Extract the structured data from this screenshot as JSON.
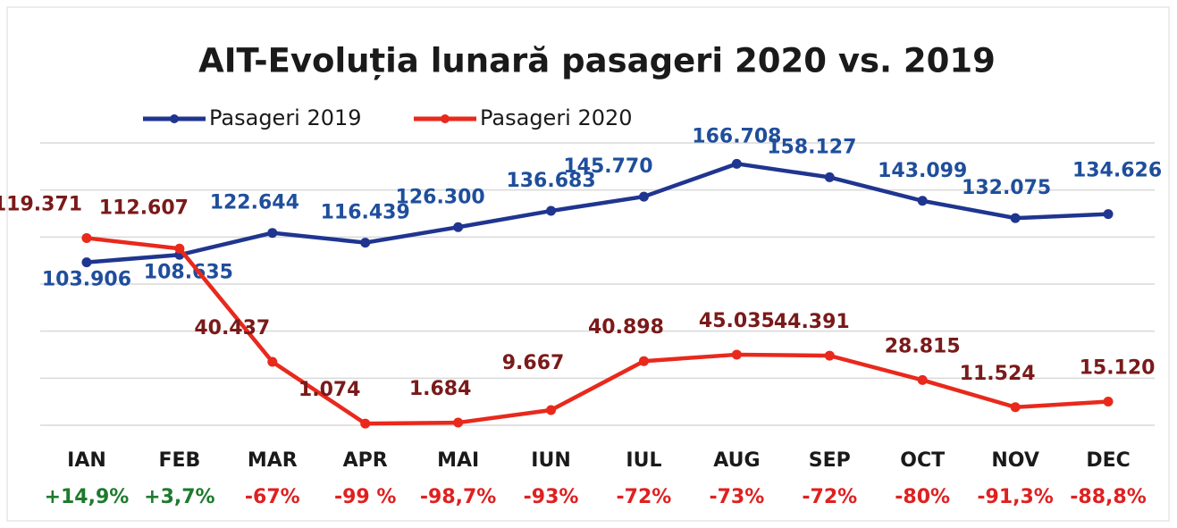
{
  "chart_data": {
    "type": "line",
    "title": "AIT-Evoluția lunară pasageri 2020 vs. 2019",
    "categories": [
      "IAN",
      "FEB",
      "MAR",
      "APR",
      "MAI",
      "IUN",
      "IUL",
      "AUG",
      "SEP",
      "OCT",
      "NOV",
      "DEC"
    ],
    "series": [
      {
        "name": "Pasageri 2019",
        "color": "#1f3590",
        "label_color": "#1f4e9c",
        "values": [
          103906,
          108635,
          122644,
          116439,
          126300,
          136683,
          145770,
          166708,
          158127,
          143099,
          132075,
          134626
        ],
        "value_labels": [
          "103.906",
          "108.635",
          "122.644",
          "116.439",
          "126.300",
          "136.683",
          "145.770",
          "166.708",
          "158.127",
          "143.099",
          "132.075",
          "134.626"
        ]
      },
      {
        "name": "Pasageri 2020",
        "color": "#e8291c",
        "label_color": "#7a1a1a",
        "values": [
          119371,
          112607,
          40437,
          1074,
          1684,
          9667,
          40898,
          45035,
          44391,
          28815,
          11524,
          15120
        ],
        "value_labels": [
          "119.371",
          "112.607",
          "40.437",
          "1.074",
          "1.684",
          "9.667",
          "40.898",
          "45.035",
          "44.391",
          "28.815",
          "11.524",
          "15.120"
        ]
      }
    ],
    "changes": [
      "+14,9%",
      "+3,7%",
      "-67%",
      "-99 %",
      "-98,7%",
      "-93%",
      "-72%",
      "-73%",
      "-72%",
      "-80%",
      "-91,3%",
      "-88,8%"
    ],
    "change_colors": [
      "#1e7a2e",
      "#1e7a2e",
      "#e02020",
      "#e02020",
      "#e02020",
      "#e02020",
      "#e02020",
      "#e02020",
      "#e02020",
      "#e02020",
      "#e02020",
      "#e02020"
    ],
    "ylim": [
      0,
      180000
    ],
    "yticks": [
      0,
      30000,
      60000,
      90000,
      120000,
      150000,
      180000
    ],
    "grid": true
  }
}
